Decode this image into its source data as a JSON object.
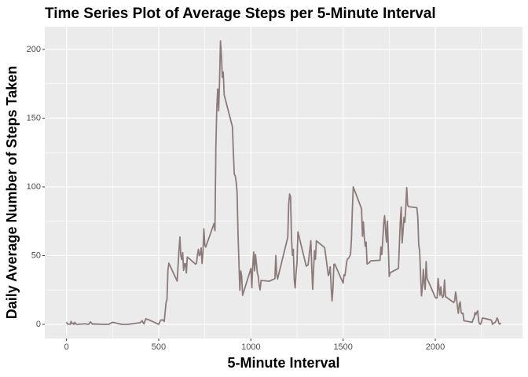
{
  "chart_data": {
    "type": "line",
    "title": "Time Series Plot of Average Steps per 5-Minute Interval",
    "x_label": "5-Minute Interval",
    "y_label": "Daily Average Number of Steps Taken",
    "grid": true,
    "xlim": [
      -117.75,
      2472.75
    ],
    "ylim": [
      -10.3,
      216.5
    ],
    "xticks": [
      0,
      500,
      1000,
      1500,
      2000
    ],
    "yticks": [
      0,
      50,
      100,
      150,
      200
    ],
    "xminor": [
      250,
      750,
      1250,
      1750,
      2250
    ],
    "yminor": [
      25,
      75,
      125,
      175
    ],
    "x": [
      0,
      5,
      10,
      15,
      20,
      25,
      30,
      35,
      40,
      45,
      50,
      55,
      100,
      110,
      120,
      130,
      140,
      150,
      200,
      230,
      250,
      300,
      330,
      400,
      410,
      420,
      430,
      440,
      450,
      500,
      510,
      520,
      530,
      540,
      545,
      550,
      555,
      600,
      610,
      615,
      620,
      625,
      630,
      635,
      640,
      645,
      650,
      655,
      700,
      705,
      710,
      715,
      720,
      725,
      730,
      735,
      740,
      745,
      750,
      755,
      800,
      805,
      810,
      815,
      820,
      825,
      830,
      835,
      840,
      845,
      850,
      855,
      900,
      905,
      910,
      915,
      920,
      925,
      930,
      935,
      940,
      945,
      950,
      955,
      1000,
      1005,
      1010,
      1015,
      1020,
      1025,
      1030,
      1035,
      1040,
      1045,
      1050,
      1055,
      1100,
      1130,
      1135,
      1140,
      1145,
      1150,
      1200,
      1205,
      1210,
      1215,
      1220,
      1225,
      1230,
      1235,
      1240,
      1245,
      1250,
      1255,
      1300,
      1310,
      1325,
      1330,
      1335,
      1340,
      1345,
      1350,
      1355,
      1400,
      1420,
      1425,
      1430,
      1435,
      1440,
      1445,
      1450,
      1455,
      1500,
      1505,
      1510,
      1520,
      1525,
      1530,
      1540,
      1545,
      1550,
      1555,
      1600,
      1605,
      1610,
      1615,
      1620,
      1625,
      1630,
      1640,
      1650,
      1700,
      1705,
      1710,
      1715,
      1720,
      1725,
      1730,
      1735,
      1740,
      1745,
      1750,
      1755,
      1800,
      1805,
      1810,
      1815,
      1820,
      1825,
      1830,
      1835,
      1840,
      1845,
      1850,
      1855,
      1900,
      1905,
      1910,
      1915,
      1920,
      1925,
      1930,
      1935,
      1940,
      1945,
      1950,
      1955,
      2000,
      2005,
      2010,
      2015,
      2020,
      2025,
      2030,
      2035,
      2040,
      2045,
      2050,
      2055,
      2100,
      2105,
      2110,
      2115,
      2120,
      2125,
      2130,
      2135,
      2140,
      2145,
      2150,
      2155,
      2200,
      2205,
      2210,
      2215,
      2220,
      2225,
      2230,
      2235,
      2240,
      2245,
      2250,
      2255,
      2300,
      2305,
      2310,
      2315,
      2320,
      2325,
      2330,
      2335,
      2340,
      2345,
      2350,
      2355
    ],
    "series": [
      {
        "color": "#8c7b7b",
        "values": [
          1.7,
          0.3,
          0.1,
          0.2,
          0.1,
          2.1,
          0.5,
          0.9,
          0,
          1.5,
          0.4,
          0,
          0.4,
          0.2,
          0,
          1.8,
          0.2,
          0.3,
          0,
          0.1,
          1.5,
          0,
          0,
          1.2,
          2.6,
          0.3,
          4.1,
          3.5,
          3.1,
          0,
          3,
          3.3,
          2.2,
          16,
          18.3,
          39.5,
          44.5,
          31.5,
          53.8,
          63.5,
          50,
          47.1,
          52.2,
          39.3,
          44,
          44.2,
          37.4,
          49,
          43.8,
          44.4,
          50.5,
          54.5,
          49.9,
          50.9,
          55.7,
          44.3,
          52.3,
          69.5,
          57.8,
          56.2,
          73.4,
          68.2,
          129.4,
          157.5,
          171.2,
          155.4,
          177.3,
          206.2,
          195.9,
          179.6,
          183.4,
          167,
          143.5,
          124,
          109.1,
          108.1,
          103.7,
          95.97,
          66.2,
          45.2,
          24.8,
          38.8,
          35,
          21.1,
          40.6,
          26.6,
          42.4,
          52.7,
          38.9,
          50.8,
          44.3,
          37.4,
          34.7,
          28.3,
          25.1,
          31.9,
          31.4,
          33.3,
          50,
          36.2,
          33,
          36,
          63.4,
          87.7,
          94.8,
          92.8,
          63.4,
          50.2,
          54.5,
          32.4,
          26.5,
          37.7,
          45.1,
          67.3,
          42.3,
          43.3,
          60.8,
          41.3,
          25.5,
          40.7,
          53.7,
          47.3,
          60.8,
          55.8,
          35.5,
          37.5,
          41.8,
          27.5,
          17.1,
          26.1,
          43.6,
          43.8,
          30,
          36.1,
          35.5,
          45.9,
          47.8,
          48.1,
          50.7,
          61.5,
          83,
          100,
          84,
          64.1,
          74.5,
          63.2,
          56.9,
          59.8,
          43.9,
          44.7,
          46.2,
          46.6,
          56.3,
          50.7,
          61.2,
          73.4,
          79,
          68.9,
          59.7,
          75.1,
          56.5,
          34.8,
          37.5,
          40.7,
          58,
          74.7,
          85.3,
          59.3,
          67.8,
          77.7,
          74.2,
          85.3,
          99.5,
          86.6,
          85.6,
          84.9,
          77.8,
          58,
          53.4,
          36.3,
          20.7,
          27.4,
          40,
          30.2,
          25.5,
          45.7,
          33.5,
          19.6,
          19,
          19.3,
          33.3,
          26.8,
          21.2,
          27.3,
          21.3,
          19.5,
          21.3,
          32.3,
          20.2,
          15.9,
          17.2,
          23.5,
          19.2,
          12.5,
          8,
          14.7,
          16.3,
          8.7,
          7.8,
          8.1,
          2.6,
          1.5,
          3.7,
          4.8,
          8.5,
          7.1,
          8.7,
          9.8,
          2.2,
          0.3,
          0.1,
          1.6,
          4.6,
          3.3,
          2.8,
          0,
          0.8,
          1,
          1.6,
          2.6,
          4.7,
          3.3,
          0.6,
          0.2,
          1.1
        ]
      }
    ]
  }
}
